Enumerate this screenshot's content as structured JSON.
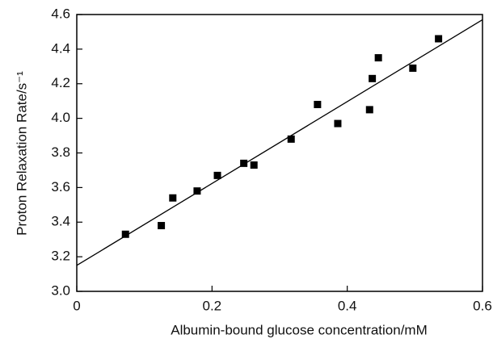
{
  "chart_data": {
    "type": "scatter",
    "x_label": "Albumin-bound glucose concentration/mM",
    "y_label": "Proton Relaxation Rate/s⁻¹",
    "x": [
      0.072,
      0.125,
      0.142,
      0.178,
      0.208,
      0.247,
      0.262,
      0.317,
      0.356,
      0.386,
      0.433,
      0.437,
      0.446,
      0.497,
      0.535
    ],
    "y": [
      3.33,
      3.38,
      3.54,
      3.58,
      3.67,
      3.74,
      3.73,
      3.88,
      4.08,
      3.97,
      4.05,
      4.23,
      4.35,
      4.29,
      4.46
    ],
    "color": "#000000",
    "fit_line": {
      "x": [
        0,
        0.6
      ],
      "y": [
        3.15,
        4.57
      ]
    },
    "xlim": [
      0,
      0.6
    ],
    "ylim": [
      3.0,
      4.6
    ],
    "xticks": [
      0,
      0.2,
      0.4,
      0.6
    ],
    "yticks": [
      {
        "value": 3.0,
        "label": "3.0"
      },
      {
        "value": 3.2,
        "label": "3.2"
      },
      {
        "value": 3.4,
        "label": "3.4"
      },
      {
        "value": 3.6,
        "label": "3.6"
      },
      {
        "value": 3.8,
        "label": "3.8"
      },
      {
        "value": 4.0,
        "label": "4.0"
      },
      {
        "value": 4.2,
        "label": "4.2"
      },
      {
        "value": 4.4,
        "label": "4.4"
      },
      {
        "value": 4.6,
        "label": "4.6"
      }
    ]
  }
}
